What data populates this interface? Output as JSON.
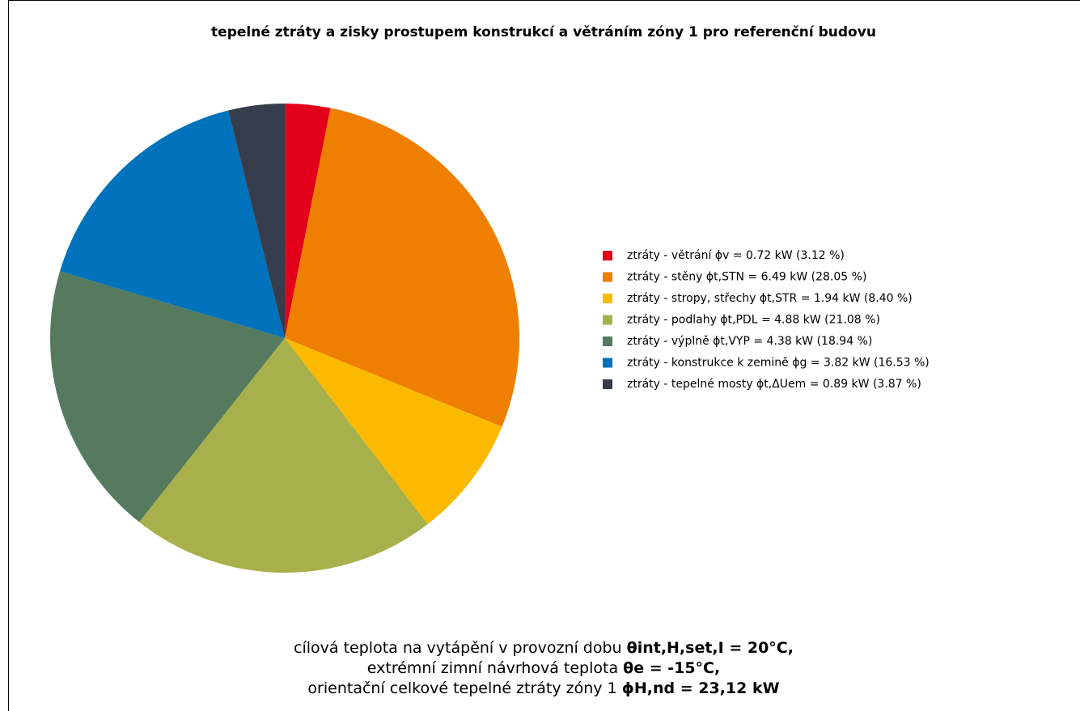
{
  "chart_data": {
    "type": "pie",
    "title": "tepelné ztráty a zisky prostupem konstrukcí a větráním zóny 1 pro referenční budovu",
    "categories": [
      "ztráty - větrání ϕv = 0.72 kW (3.12 %)",
      "ztráty - stěny ϕt,STN = 6.49 kW (28.05 %)",
      "ztráty - stropy, střechy ϕt,STR = 1.94 kW (8.40 %)",
      "ztráty - podlahy ϕt,PDL = 4.88 kW (21.08 %)",
      "ztráty - výplně ϕt,VYP = 4.38 kW (18.94 %)",
      "ztráty - konstrukce k zemině ϕg = 3.82 kW (16.53 %)",
      "ztráty - tepelné mosty ϕt,ΔUem = 0.89 kW (3.87 %)"
    ],
    "values": [
      3.12,
      28.05,
      8.4,
      21.08,
      18.94,
      16.53,
      3.87
    ],
    "colors": [
      "#e2001a",
      "#ee7f00",
      "#fbba00",
      "#a8b04b",
      "#557a5e",
      "#0072bb",
      "#353c4b"
    ],
    "legend": "right",
    "footer": [
      {
        "text": "cílová teplota na vytápění v provozní dobu ",
        "emphasis": "θint,H,set,I = 20°C,"
      },
      {
        "text": "extrémní zimní návrhová teplota ",
        "emphasis": "θe = -15°C,"
      },
      {
        "text": "orientační celkové tepelné ztráty zóny 1 ",
        "emphasis": "ϕH,nd = 23,12 kW"
      }
    ]
  }
}
